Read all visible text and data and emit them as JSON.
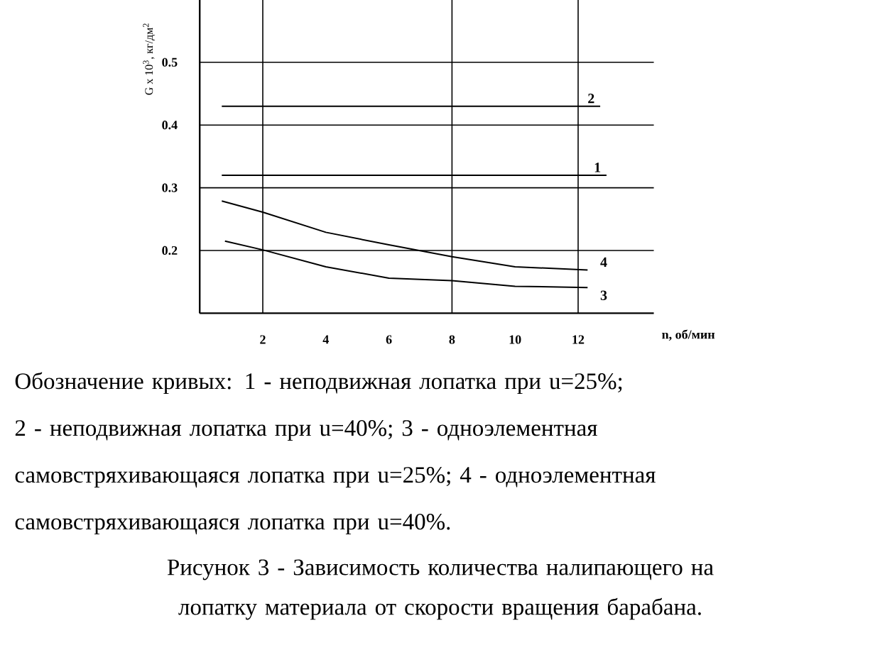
{
  "chart_data": {
    "type": "line",
    "xlabel": "n, об/мин",
    "ylabel": "G x 10$^{3}$, кг/дм$^{2}$",
    "title": "Рисунок 3 - Зависимость количества налипающего на лопатку материала от скорости вращения барабана.",
    "annotations": [
      "Обозначение кривых: 1 - неподвижная лопатка при u=25%; 2 - неподвижная лопатка при u=40%; 3 - одноэлементная самовстряхивающаяся лопатка при u=25%; 4 - одноэлементная самовстряхивающаяся лопатка при u=40%."
    ],
    "xlim": [
      0,
      14.4
    ],
    "ylim": [
      0.1,
      0.6
    ],
    "xticks": [
      2,
      4,
      6,
      8,
      10,
      12
    ],
    "yticks": [
      0.2,
      0.3,
      0.4,
      0.5
    ],
    "grid": "y",
    "legend": false,
    "marker": "none",
    "line_style": "solid",
    "ref_lines": [
      {
        "axis": "x",
        "value": 2,
        "label": null,
        "color": "#000000"
      },
      {
        "axis": "x",
        "value": 8,
        "label": null,
        "color": "#000000"
      },
      {
        "axis": "x",
        "value": 12,
        "label": null,
        "color": "#000000"
      }
    ],
    "series": [
      {
        "name": "1",
        "color": "#000000",
        "x": [
          0.7,
          12.9
        ],
        "values": [
          0.32,
          0.32
        ]
      },
      {
        "name": "2",
        "color": "#000000",
        "x": [
          0.7,
          12.7
        ],
        "values": [
          0.43,
          0.43
        ]
      },
      {
        "name": "3",
        "color": "#000000",
        "x": [
          0.8,
          2,
          4,
          6,
          8,
          10,
          12.3
        ],
        "values": [
          0.215,
          0.201,
          0.174,
          0.156,
          0.152,
          0.143,
          0.141
        ]
      },
      {
        "name": "4",
        "color": "#000000",
        "x": [
          0.7,
          2,
          4,
          6,
          8,
          10,
          12.3
        ],
        "values": [
          0.279,
          0.261,
          0.229,
          0.209,
          0.19,
          0.174,
          0.169
        ]
      }
    ]
  }
}
